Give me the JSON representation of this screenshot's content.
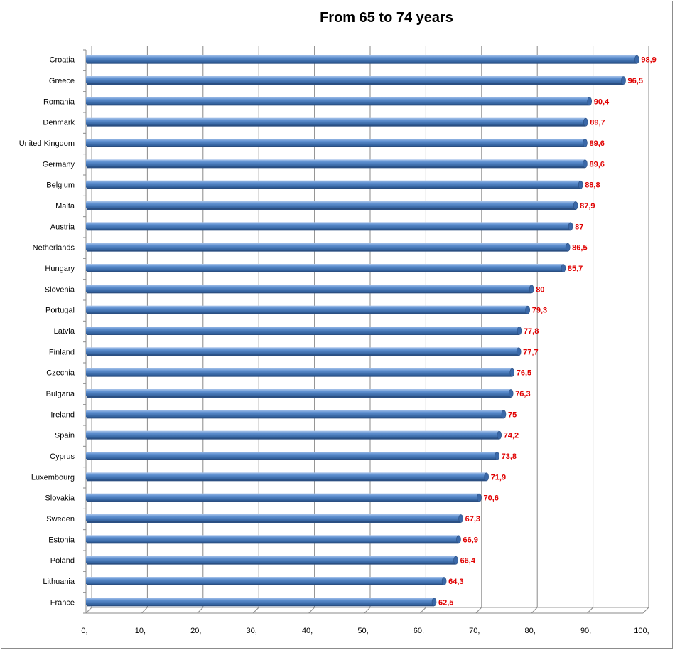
{
  "chart_data": {
    "type": "bar",
    "orientation": "horizontal",
    "title": "From 65 to 74 years",
    "categories": [
      "Croatia",
      "Greece",
      "Romania",
      "Denmark",
      "United Kingdom",
      "Germany",
      "Belgium",
      "Malta",
      "Austria",
      "Netherlands",
      "Hungary",
      "Slovenia",
      "Portugal",
      "Latvia",
      "Finland",
      "Czechia",
      "Bulgaria",
      "Ireland",
      "Spain",
      "Cyprus",
      "Luxembourg",
      "Slovakia",
      "Sweden",
      "Estonia",
      "Poland",
      "Lithuania",
      "France"
    ],
    "values": [
      98.9,
      96.5,
      90.4,
      89.7,
      89.6,
      89.6,
      88.8,
      87.9,
      87,
      86.5,
      85.7,
      80,
      79.3,
      77.8,
      77.7,
      76.5,
      76.3,
      75,
      74.2,
      73.8,
      71.9,
      70.6,
      67.3,
      66.9,
      66.4,
      64.3,
      62.5
    ],
    "data_labels": [
      "98,9",
      "96,5",
      "90,4",
      "89,7",
      "89,6",
      "89,6",
      "88,8",
      "87,9",
      "87",
      "86,5",
      "85,7",
      "80",
      "79,3",
      "77,8",
      "77,7",
      "76,5",
      "76,3",
      "75",
      "74,2",
      "73,8",
      "71,9",
      "70,6",
      "67,3",
      "66,9",
      "66,4",
      "64,3",
      "62,5"
    ],
    "x_ticks": [
      0,
      10,
      20,
      30,
      40,
      50,
      60,
      70,
      80,
      90,
      100
    ],
    "x_tick_labels": [
      "0,",
      "10,",
      "20,",
      "30,",
      "40,",
      "50,",
      "60,",
      "70,",
      "80,",
      "90,",
      "100,"
    ],
    "xlim": [
      0,
      100
    ],
    "xlabel": "",
    "ylabel": "",
    "grid": "vertical",
    "legend": "none",
    "bar_color": "#4a7ebb",
    "label_color": "#e00000"
  }
}
